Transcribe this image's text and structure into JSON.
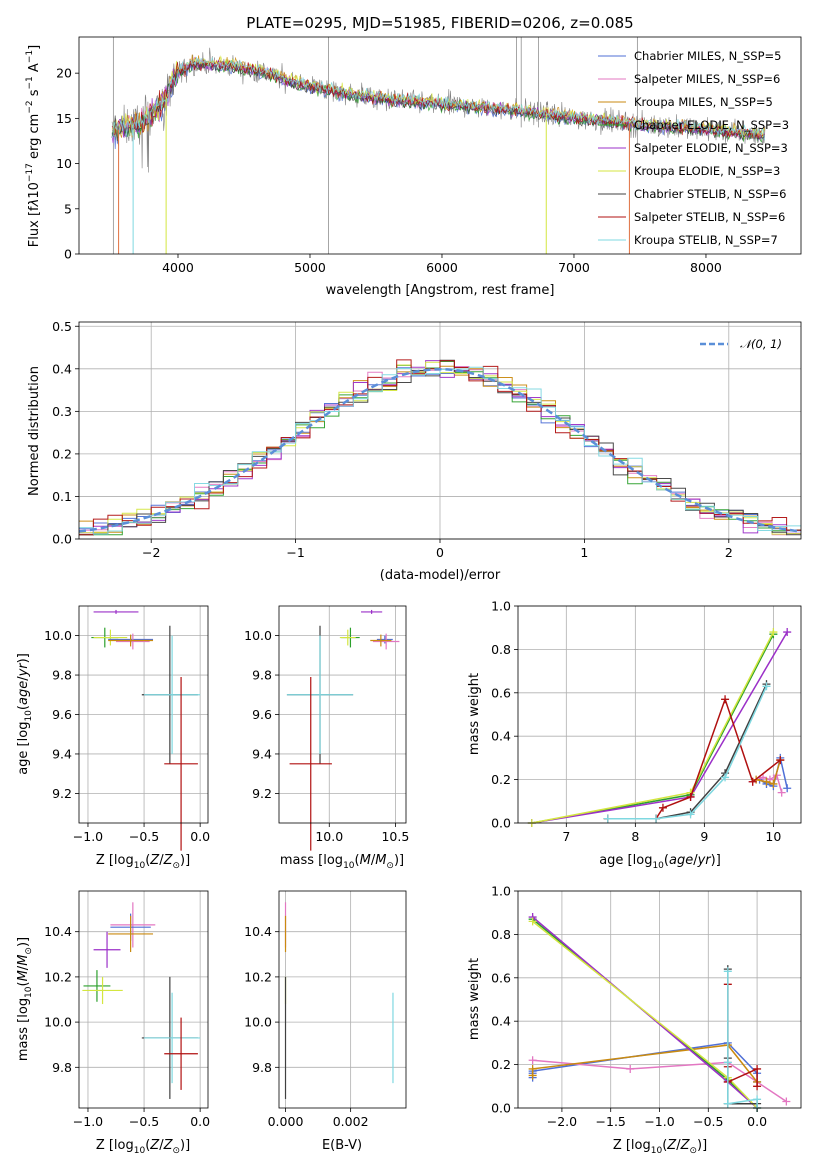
{
  "chart_data": [
    {
      "type": "line",
      "panel": "spectrum",
      "title": "PLATE=0295, MJD=51985, FIBERID=0206, z=0.085",
      "xlabel": "wavelength [Angstrom, rest frame]",
      "ylabel": "Flux [f_λ 10^-17 erg cm^-2 s^-1 A^-1]",
      "xlim": [
        3250,
        8720
      ],
      "ylim": [
        0,
        24
      ],
      "xticks": [
        "4000",
        "5000",
        "6000",
        "7000",
        "8000"
      ],
      "yticks": [
        "0",
        "5",
        "10",
        "15",
        "20"
      ],
      "grid": false,
      "legend_position": "upper-right",
      "legend": [
        {
          "text": "Chabrier MILES, N_SSP=5",
          "color": "#4f6fd6"
        },
        {
          "text": "Salpeter MILES, N_SSP=6",
          "color": "#e377c2"
        },
        {
          "text": "Kroupa MILES, N_SSP=5",
          "color": "#c98a10"
        },
        {
          "text": "Chabrier ELODIE, N_SSP=3",
          "color": "#2ca02c"
        },
        {
          "text": "Salpeter ELODIE, N_SSP=3",
          "color": "#9b30c8"
        },
        {
          "text": "Kroupa ELODIE, N_SSP=3",
          "color": "#d4e640"
        },
        {
          "text": "Chabrier STELIB, N_SSP=6",
          "color": "#404040"
        },
        {
          "text": "Salpeter STELIB, N_SSP=6",
          "color": "#b01010"
        },
        {
          "text": "Kroupa STELIB, N_SSP=7",
          "color": "#7fd8e0"
        }
      ],
      "data_color": "#808080",
      "continuum": {
        "x": [
          3500,
          3700,
          3800,
          3900,
          3950,
          4000,
          4100,
          4200,
          4400,
          4600,
          5000,
          5500,
          6000,
          6500,
          7000,
          7500,
          8000,
          8450
        ],
        "y": [
          13.5,
          14.5,
          15.5,
          17,
          19,
          20,
          21,
          21,
          20.8,
          20.3,
          18.5,
          17.2,
          16.6,
          16,
          15.1,
          14.3,
          13.8,
          13.1
        ]
      }
    },
    {
      "type": "histogram",
      "panel": "residuals",
      "xlabel": "(data-model)/error",
      "ylabel": "Normed distribution",
      "xlim": [
        -2.5,
        2.5
      ],
      "ylim": [
        0,
        0.51
      ],
      "xticks": [
        "−2",
        "−1",
        "0",
        "1",
        "2"
      ],
      "yticks": [
        "0.0",
        "0.1",
        "0.2",
        "0.3",
        "0.4",
        "0.5"
      ],
      "grid": true,
      "legend_position": "upper-right",
      "legend": [
        {
          "text": "N(0,1)",
          "color": "#5b8fd8",
          "style": "dashed"
        }
      ],
      "bin_width": 0.1,
      "envelope": {
        "type": "gaussian",
        "mean": 0,
        "sigma": 1,
        "peak": 0.399
      }
    },
    {
      "type": "scatter",
      "panel": "age-vs-Z",
      "xlabel": "Z [log10(Z/Z⊙)]",
      "ylabel": "age [log10(age/yr)]",
      "xlim": [
        -1.08,
        0.07
      ],
      "ylim": [
        9.05,
        10.15
      ],
      "xticks": [
        "−1.0",
        "−0.5",
        "0.0"
      ],
      "yticks": [
        "9.2",
        "9.4",
        "9.6",
        "9.8",
        "10.0"
      ],
      "grid": true,
      "points": [
        {
          "series": "Salpeter ELODIE",
          "x": -0.75,
          "y": 10.12,
          "xerr": 0.2,
          "yerr": 0.0
        },
        {
          "series": "Chabrier ELODIE",
          "x": -0.85,
          "y": 9.99,
          "xerr": 0.12,
          "yerr": 0.05
        },
        {
          "series": "Kroupa ELODIE",
          "x": -0.8,
          "y": 9.99,
          "xerr": 0.15,
          "yerr": 0.04
        },
        {
          "series": "Chabrier MILES",
          "x": -0.62,
          "y": 9.98,
          "xerr": 0.2,
          "yerr": 0.02
        },
        {
          "series": "Salpeter MILES",
          "x": -0.6,
          "y": 9.97,
          "xerr": 0.15,
          "yerr": 0.04
        },
        {
          "series": "Kroupa MILES",
          "x": -0.62,
          "y": 9.975,
          "xerr": 0.2,
          "yerr": 0.03
        },
        {
          "series": "Chabrier STELIB",
          "x": -0.27,
          "y": 9.7,
          "xerr": 0.25,
          "yerr": 0.35
        },
        {
          "series": "Kroupa STELIB",
          "x": -0.25,
          "y": 9.7,
          "xerr": 0.25,
          "yerr": 0.3
        },
        {
          "series": "Salpeter STELIB",
          "x": -0.17,
          "y": 9.35,
          "xerr": 0.15,
          "yerr": 0.44
        }
      ]
    },
    {
      "type": "scatter",
      "panel": "age-vs-mass",
      "xlabel": "mass [log10(M/M⊙)]",
      "ylabel": "",
      "xlim": [
        9.62,
        10.58
      ],
      "ylim": [
        9.05,
        10.15
      ],
      "xticks": [
        "10.0",
        "10.5"
      ],
      "yticks": [
        "9.2",
        "9.4",
        "9.6",
        "9.8",
        "10.0"
      ],
      "grid": true,
      "points": [
        {
          "series": "Salpeter ELODIE",
          "x": 10.32,
          "y": 10.12,
          "xerr": 0.08,
          "yerr": 0.0
        },
        {
          "series": "Chabrier ELODIE",
          "x": 10.16,
          "y": 9.99,
          "xerr": 0.07,
          "yerr": 0.05
        },
        {
          "series": "Kroupa ELODIE",
          "x": 10.14,
          "y": 9.99,
          "xerr": 0.06,
          "yerr": 0.04
        },
        {
          "series": "Chabrier MILES",
          "x": 10.42,
          "y": 9.98,
          "xerr": 0.06,
          "yerr": 0.02
        },
        {
          "series": "Salpeter MILES",
          "x": 10.43,
          "y": 9.97,
          "xerr": 0.1,
          "yerr": 0.04
        },
        {
          "series": "Kroupa MILES",
          "x": 10.39,
          "y": 9.975,
          "xerr": 0.08,
          "yerr": 0.03
        },
        {
          "series": "Chabrier STELIB",
          "x": 9.93,
          "y": 9.7,
          "xerr": 0.25,
          "yerr": 0.35
        },
        {
          "series": "Kroupa STELIB",
          "x": 9.93,
          "y": 9.7,
          "xerr": 0.25,
          "yerr": 0.3
        },
        {
          "series": "Salpeter STELIB",
          "x": 9.86,
          "y": 9.35,
          "xerr": 0.16,
          "yerr": 0.44
        }
      ]
    },
    {
      "type": "line",
      "panel": "mass-weight-vs-age",
      "xlabel": "age [log10(age/yr)]",
      "ylabel": "mass weight",
      "xlim": [
        6.3,
        10.4
      ],
      "ylim": [
        0,
        1.0
      ],
      "xticks": [
        "7",
        "8",
        "9",
        "10"
      ],
      "yticks": [
        "0.0",
        "0.2",
        "0.4",
        "0.6",
        "0.8",
        "1.0"
      ],
      "grid": true,
      "series": [
        {
          "name": "Chabrier MILES",
          "x": [
            9.8,
            9.9,
            10.0,
            10.1,
            10.2
          ],
          "y": [
            0.2,
            0.18,
            0.17,
            0.3,
            0.16
          ]
        },
        {
          "name": "Salpeter MILES",
          "x": [
            9.7,
            9.85,
            9.95,
            10.05,
            10.12
          ],
          "y": [
            0.19,
            0.21,
            0.2,
            0.22,
            0.14
          ]
        },
        {
          "name": "Kroupa MILES",
          "x": [
            9.75,
            9.9,
            10.0,
            10.1
          ],
          "y": [
            0.2,
            0.19,
            0.18,
            0.29
          ]
        },
        {
          "name": "Chabrier ELODIE",
          "x": [
            6.5,
            8.8,
            10.0
          ],
          "y": [
            0.0,
            0.13,
            0.87
          ]
        },
        {
          "name": "Salpeter ELODIE",
          "x": [
            6.5,
            8.8,
            10.2
          ],
          "y": [
            0.0,
            0.12,
            0.88
          ]
        },
        {
          "name": "Kroupa ELODIE",
          "x": [
            6.5,
            8.8,
            10.0
          ],
          "y": [
            0.0,
            0.14,
            0.88
          ]
        },
        {
          "name": "Chabrier STELIB",
          "x": [
            7.6,
            8.3,
            8.8,
            9.3,
            9.9
          ],
          "y": [
            0.02,
            0.02,
            0.05,
            0.23,
            0.64
          ]
        },
        {
          "name": "Salpeter STELIB",
          "x": [
            7.6,
            8.3,
            8.4,
            8.8,
            9.3,
            9.7,
            10.1
          ],
          "y": [
            0.02,
            0.02,
            0.07,
            0.12,
            0.57,
            0.19,
            0.29
          ]
        },
        {
          "name": "Kroupa STELIB",
          "x": [
            7.6,
            8.3,
            8.8,
            9.3,
            9.9
          ],
          "y": [
            0.02,
            0.02,
            0.04,
            0.21,
            0.63
          ]
        }
      ]
    },
    {
      "type": "scatter",
      "panel": "mass-vs-Z",
      "xlabel": "Z [log10(Z/Z⊙)]",
      "ylabel": "mass [log10(M/M⊙)]",
      "xlim": [
        -1.08,
        0.07
      ],
      "ylim": [
        9.62,
        10.58
      ],
      "xticks": [
        "−1.0",
        "−0.5",
        "0.0"
      ],
      "yticks": [
        "9.8",
        "10.0",
        "10.2",
        "10.4"
      ],
      "grid": true,
      "points": [
        {
          "series": "Salpeter MILES",
          "x": -0.6,
          "y": 10.43,
          "xerr": 0.2,
          "yerr": 0.1
        },
        {
          "series": "Chabrier MILES",
          "x": -0.62,
          "y": 10.42,
          "xerr": 0.18,
          "yerr": 0.06
        },
        {
          "series": "Kroupa MILES",
          "x": -0.62,
          "y": 10.39,
          "xerr": 0.2,
          "yerr": 0.08
        },
        {
          "series": "Salpeter ELODIE",
          "x": -0.83,
          "y": 10.32,
          "xerr": 0.12,
          "yerr": 0.08
        },
        {
          "series": "Chabrier ELODIE",
          "x": -0.92,
          "y": 10.16,
          "xerr": 0.12,
          "yerr": 0.07
        },
        {
          "series": "Kroupa ELODIE",
          "x": -0.87,
          "y": 10.14,
          "xerr": 0.18,
          "yerr": 0.06
        },
        {
          "series": "Chabrier STELIB",
          "x": -0.27,
          "y": 9.93,
          "xerr": 0.25,
          "yerr": 0.27
        },
        {
          "series": "Kroupa STELIB",
          "x": -0.25,
          "y": 9.93,
          "xerr": 0.25,
          "yerr": 0.2
        },
        {
          "series": "Salpeter STELIB",
          "x": -0.17,
          "y": 9.86,
          "xerr": 0.15,
          "yerr": 0.16
        }
      ]
    },
    {
      "type": "scatter",
      "panel": "mass-vs-EBV",
      "xlabel": "E(B-V)",
      "ylabel": "",
      "xlim": [
        -0.0002,
        0.0037
      ],
      "ylim": [
        9.62,
        10.58
      ],
      "xticks": [
        "0.000",
        "0.002"
      ],
      "yticks": [
        "9.8",
        "10.0",
        "10.2",
        "10.4"
      ],
      "grid": true,
      "points": [
        {
          "series": "Salpeter MILES",
          "x": 0.0,
          "y": 10.43,
          "xerr": 0,
          "yerr": 0.1
        },
        {
          "series": "Kroupa MILES",
          "x": 0.0,
          "y": 10.39,
          "xerr": 0,
          "yerr": 0.08
        },
        {
          "series": "Kroupa ELODIE",
          "x": 0.0,
          "y": 10.14,
          "xerr": 0,
          "yerr": 0.06
        },
        {
          "series": "Chabrier STELIB",
          "x": 0.0,
          "y": 9.93,
          "xerr": 0,
          "yerr": 0.27
        },
        {
          "series": "Kroupa STELIB",
          "x": 0.0033,
          "y": 9.93,
          "xerr": 0,
          "yerr": 0.2
        }
      ]
    },
    {
      "type": "line",
      "panel": "mass-weight-vs-Z",
      "xlabel": "Z [log10(Z/Z⊙)]",
      "ylabel": "mass weight",
      "xlim": [
        -2.45,
        0.45
      ],
      "ylim": [
        0,
        1.0
      ],
      "xticks": [
        "−2.0",
        "−1.5",
        "−1.0",
        "−0.5",
        "0.0"
      ],
      "yticks": [
        "0.0",
        "0.2",
        "0.4",
        "0.6",
        "0.8",
        "1.0"
      ],
      "grid": true,
      "series": [
        {
          "name": "Chabrier MILES",
          "x": [
            -2.3,
            -2.3,
            -2.3,
            -0.3,
            0.0,
            0.0
          ],
          "y": [
            0.14,
            0.16,
            0.17,
            0.3,
            0.16,
            0.12
          ]
        },
        {
          "name": "Salpeter MILES",
          "x": [
            -2.3,
            -1.3,
            -0.3,
            0.3
          ],
          "y": [
            0.22,
            0.18,
            0.21,
            0.03
          ]
        },
        {
          "name": "Kroupa MILES",
          "x": [
            -2.3,
            -2.3,
            -0.3,
            0.0
          ],
          "y": [
            0.15,
            0.18,
            0.29,
            0.12
          ]
        },
        {
          "name": "Chabrier ELODIE",
          "x": [
            -2.3,
            -0.3,
            0.0
          ],
          "y": [
            0.87,
            0.13,
            0.0
          ]
        },
        {
          "name": "Salpeter ELODIE",
          "x": [
            -2.3,
            -0.3,
            0.0
          ],
          "y": [
            0.88,
            0.12,
            0.0
          ]
        },
        {
          "name": "Kroupa ELODIE",
          "x": [
            -2.3,
            -0.3,
            0.0
          ],
          "y": [
            0.86,
            0.14,
            0.0
          ]
        },
        {
          "name": "Chabrier STELIB",
          "x": [
            -0.3,
            -0.3,
            -0.3,
            0.0,
            0.0
          ],
          "y": [
            0.64,
            0.23,
            0.02,
            0.02,
            0.0
          ]
        },
        {
          "name": "Salpeter STELIB",
          "x": [
            -0.3,
            -0.3,
            -0.3,
            0.0,
            0.0
          ],
          "y": [
            0.57,
            0.19,
            0.12,
            0.18,
            0.1
          ]
        },
        {
          "name": "Kroupa STELIB",
          "x": [
            -0.3,
            -0.3,
            -0.3,
            0.0,
            0.0
          ],
          "y": [
            0.63,
            0.21,
            0.02,
            0.04,
            0.0
          ]
        }
      ]
    }
  ]
}
